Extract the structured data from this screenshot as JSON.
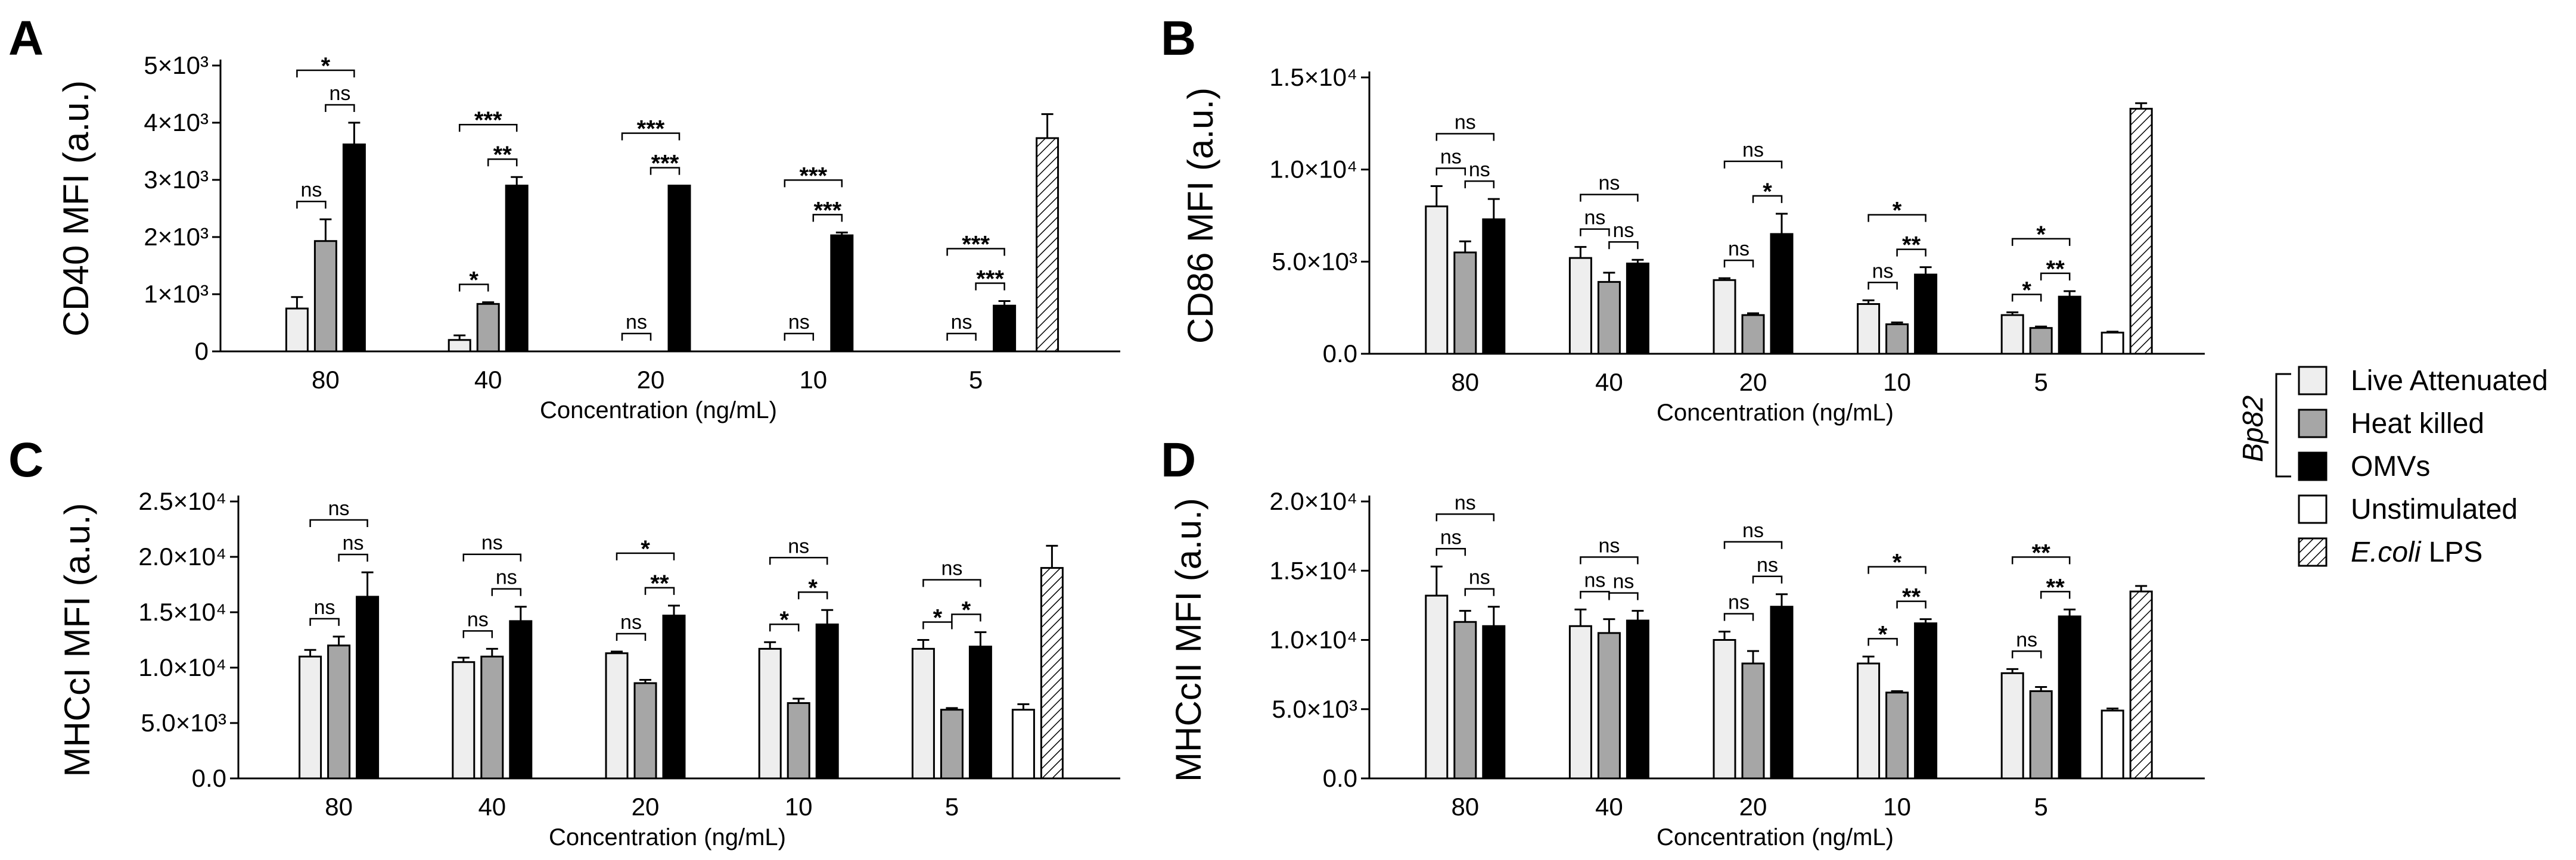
{
  "colors": {
    "live_attenuated": "#eeeeee",
    "heat_killed": "#a6a6a6",
    "omvs": "#000000",
    "unstimulated": "#ffffff",
    "ecoli_lps": "hatched"
  },
  "legend": {
    "group_label": "Bp82",
    "items": [
      {
        "key": "live_attenuated",
        "label": "Live Attenuated"
      },
      {
        "key": "heat_killed",
        "label": "Heat killed"
      },
      {
        "key": "omvs",
        "label": "OMVs"
      },
      {
        "key": "unstimulated",
        "label": "Unstimulated"
      },
      {
        "key": "ecoli_lps",
        "label": "LPS",
        "italic_prefix": "E.coli"
      }
    ]
  },
  "chart_data": [
    {
      "panel": "A",
      "type": "bar",
      "ylabel": "CD40 MFI (a.u.)",
      "xlabel": "Concentration (ng/mL)",
      "ylim": [
        0,
        5000
      ],
      "yticks": [
        {
          "v": 0,
          "label": "0"
        },
        {
          "v": 1000,
          "label": "1×10³"
        },
        {
          "v": 2000,
          "label": "2×10³"
        },
        {
          "v": 3000,
          "label": "3×10³"
        },
        {
          "v": 4000,
          "label": "4×10³"
        },
        {
          "v": 5000,
          "label": "5×10³"
        }
      ],
      "categories": [
        "80",
        "40",
        "20",
        "10",
        "5"
      ],
      "series": [
        {
          "name": "Live Attenuated",
          "values": [
            750,
            200,
            0,
            0,
            0
          ],
          "errors": [
            200,
            80,
            0,
            0,
            0
          ]
        },
        {
          "name": "Heat killed",
          "values": [
            1930,
            830,
            0,
            0,
            0
          ],
          "errors": [
            380,
            30,
            0,
            0,
            0
          ]
        },
        {
          "name": "OMVs",
          "values": [
            3620,
            2900,
            2900,
            2030,
            800
          ],
          "errors": [
            380,
            150,
            0,
            50,
            80
          ]
        }
      ],
      "extra_bars": [
        {
          "name": "E.coli LPS",
          "value": 3730,
          "error": 420
        }
      ],
      "annotations": [
        {
          "cat": 0,
          "from": 0,
          "to": 2,
          "text": "*",
          "level": 1
        },
        {
          "cat": 0,
          "from": 1,
          "to": 2,
          "text": "ns",
          "level": 0
        },
        {
          "cat": 0,
          "from": 0,
          "to": 1,
          "text": "ns",
          "level": 0
        },
        {
          "cat": 1,
          "from": 0,
          "to": 2,
          "text": "***",
          "level": 1
        },
        {
          "cat": 1,
          "from": 1,
          "to": 2,
          "text": "**",
          "level": 0
        },
        {
          "cat": 1,
          "from": 0,
          "to": 1,
          "text": "*",
          "level": 0
        },
        {
          "cat": 2,
          "from": 0,
          "to": 2,
          "text": "***",
          "level": 1
        },
        {
          "cat": 2,
          "from": 1,
          "to": 2,
          "text": "***",
          "level": 0
        },
        {
          "cat": 2,
          "from": 0,
          "to": 1,
          "text": "ns",
          "level": 0
        },
        {
          "cat": 3,
          "from": 0,
          "to": 2,
          "text": "***",
          "level": 1
        },
        {
          "cat": 3,
          "from": 1,
          "to": 2,
          "text": "***",
          "level": 0
        },
        {
          "cat": 3,
          "from": 0,
          "to": 1,
          "text": "ns",
          "level": 0
        },
        {
          "cat": 4,
          "from": 0,
          "to": 2,
          "text": "***",
          "level": 1
        },
        {
          "cat": 4,
          "from": 1,
          "to": 2,
          "text": "***",
          "level": 0
        },
        {
          "cat": 4,
          "from": 0,
          "to": 1,
          "text": "ns",
          "level": 0
        }
      ]
    },
    {
      "panel": "B",
      "type": "bar",
      "ylabel": "CD86 MFI (a.u.)",
      "xlabel": "Concentration (ng/mL)",
      "ylim": [
        0,
        15000
      ],
      "yticks": [
        {
          "v": 0,
          "label": "0.0"
        },
        {
          "v": 5000,
          "label": "5.0×10³"
        },
        {
          "v": 10000,
          "label": "1.0×10⁴"
        },
        {
          "v": 15000,
          "label": "1.5×10⁴"
        }
      ],
      "categories": [
        "80",
        "40",
        "20",
        "10",
        "5"
      ],
      "series": [
        {
          "name": "Live Attenuated",
          "values": [
            8000,
            5200,
            4000,
            2700,
            2100
          ],
          "errors": [
            1100,
            600,
            100,
            200,
            150
          ]
        },
        {
          "name": "Heat killed",
          "values": [
            5500,
            3900,
            2100,
            1600,
            1400
          ],
          "errors": [
            600,
            500,
            100,
            100,
            80
          ]
        },
        {
          "name": "OMVs",
          "values": [
            7300,
            4900,
            6500,
            4300,
            3100
          ],
          "errors": [
            1100,
            200,
            1100,
            400,
            300
          ]
        }
      ],
      "extra_bars": [
        {
          "name": "Unstimulated",
          "value": 1150,
          "error": 50
        },
        {
          "name": "E.coli LPS",
          "value": 13300,
          "error": 300
        }
      ],
      "annotations": [
        {
          "cat": 0,
          "from": 0,
          "to": 2,
          "text": "ns",
          "level": 1
        },
        {
          "cat": 0,
          "from": 0,
          "to": 1,
          "text": "ns",
          "level": 0
        },
        {
          "cat": 0,
          "from": 1,
          "to": 2,
          "text": "ns",
          "level": 0
        },
        {
          "cat": 1,
          "from": 0,
          "to": 2,
          "text": "ns",
          "level": 1
        },
        {
          "cat": 1,
          "from": 0,
          "to": 1,
          "text": "ns",
          "level": 0
        },
        {
          "cat": 1,
          "from": 1,
          "to": 2,
          "text": "ns",
          "level": 0
        },
        {
          "cat": 2,
          "from": 0,
          "to": 2,
          "text": "ns",
          "level": 1
        },
        {
          "cat": 2,
          "from": 1,
          "to": 2,
          "text": "*",
          "level": 0
        },
        {
          "cat": 2,
          "from": 0,
          "to": 1,
          "text": "ns",
          "level": 0
        },
        {
          "cat": 3,
          "from": 0,
          "to": 2,
          "text": "*",
          "level": 1
        },
        {
          "cat": 3,
          "from": 1,
          "to": 2,
          "text": "**",
          "level": 0
        },
        {
          "cat": 3,
          "from": 0,
          "to": 1,
          "text": "ns",
          "level": 0
        },
        {
          "cat": 4,
          "from": 0,
          "to": 2,
          "text": "*",
          "level": 1
        },
        {
          "cat": 4,
          "from": 1,
          "to": 2,
          "text": "**",
          "level": 0
        },
        {
          "cat": 4,
          "from": 0,
          "to": 1,
          "text": "*",
          "level": 0
        }
      ]
    },
    {
      "panel": "C",
      "type": "bar",
      "ylabel": "MHCcI MFI (a.u.)",
      "xlabel": "Concentration (ng/mL)",
      "ylim": [
        0,
        25000
      ],
      "yticks": [
        {
          "v": 0,
          "label": "0.0"
        },
        {
          "v": 5000,
          "label": "5.0×10³"
        },
        {
          "v": 10000,
          "label": "1.0×10⁴"
        },
        {
          "v": 15000,
          "label": "1.5×10⁴"
        },
        {
          "v": 20000,
          "label": "2.0×10⁴"
        },
        {
          "v": 25000,
          "label": "2.5×10⁴"
        }
      ],
      "categories": [
        "80",
        "40",
        "20",
        "10",
        "5"
      ],
      "series": [
        {
          "name": "Live Attenuated",
          "values": [
            11000,
            10500,
            11300,
            11700,
            11700
          ],
          "errors": [
            600,
            400,
            150,
            600,
            800
          ]
        },
        {
          "name": "Heat killed",
          "values": [
            12000,
            11000,
            8600,
            6800,
            6200
          ],
          "errors": [
            800,
            700,
            300,
            400,
            150
          ]
        },
        {
          "name": "OMVs",
          "values": [
            16400,
            14200,
            14700,
            13900,
            11900
          ],
          "errors": [
            2200,
            1300,
            900,
            1300,
            1300
          ]
        }
      ],
      "extra_bars": [
        {
          "name": "Unstimulated",
          "value": 6200,
          "error": 500
        },
        {
          "name": "E.coli LPS",
          "value": 19000,
          "error": 2000
        }
      ],
      "annotations": [
        {
          "cat": 0,
          "from": 0,
          "to": 2,
          "text": "ns",
          "level": 1
        },
        {
          "cat": 0,
          "from": 1,
          "to": 2,
          "text": "ns",
          "level": 0
        },
        {
          "cat": 0,
          "from": 0,
          "to": 1,
          "text": "ns",
          "level": 0
        },
        {
          "cat": 1,
          "from": 0,
          "to": 2,
          "text": "ns",
          "level": 1
        },
        {
          "cat": 1,
          "from": 1,
          "to": 2,
          "text": "ns",
          "level": 0
        },
        {
          "cat": 1,
          "from": 0,
          "to": 1,
          "text": "ns",
          "level": 0
        },
        {
          "cat": 2,
          "from": 0,
          "to": 2,
          "text": "*",
          "level": 1
        },
        {
          "cat": 2,
          "from": 1,
          "to": 2,
          "text": "**",
          "level": 0
        },
        {
          "cat": 2,
          "from": 0,
          "to": 1,
          "text": "ns",
          "level": 0
        },
        {
          "cat": 3,
          "from": 0,
          "to": 2,
          "text": "ns",
          "level": 1
        },
        {
          "cat": 3,
          "from": 1,
          "to": 2,
          "text": "*",
          "level": 0
        },
        {
          "cat": 3,
          "from": 0,
          "to": 1,
          "text": "*",
          "level": 0
        },
        {
          "cat": 4,
          "from": 0,
          "to": 2,
          "text": "ns",
          "level": 1
        },
        {
          "cat": 4,
          "from": 1,
          "to": 2,
          "text": "*",
          "level": 0
        },
        {
          "cat": 4,
          "from": 0,
          "to": 1,
          "text": "*",
          "level": 0
        }
      ]
    },
    {
      "panel": "D",
      "type": "bar",
      "ylabel": "MHCcII MFI (a.u.)",
      "xlabel": "Concentration (ng/mL)",
      "ylim": [
        0,
        20000
      ],
      "yticks": [
        {
          "v": 0,
          "label": "0.0"
        },
        {
          "v": 5000,
          "label": "5.0×10³"
        },
        {
          "v": 10000,
          "label": "1.0×10⁴"
        },
        {
          "v": 15000,
          "label": "1.5×10⁴"
        },
        {
          "v": 20000,
          "label": "2.0×10⁴"
        }
      ],
      "categories": [
        "80",
        "40",
        "20",
        "10",
        "5"
      ],
      "series": [
        {
          "name": "Live Attenuated",
          "values": [
            13200,
            11000,
            10000,
            8300,
            7600
          ],
          "errors": [
            2100,
            1200,
            600,
            500,
            300
          ]
        },
        {
          "name": "Heat killed",
          "values": [
            11300,
            10500,
            8300,
            6200,
            6300
          ],
          "errors": [
            800,
            1000,
            900,
            100,
            300
          ]
        },
        {
          "name": "OMVs",
          "values": [
            11000,
            11400,
            12400,
            11200,
            11700
          ],
          "errors": [
            1400,
            700,
            900,
            300,
            500
          ]
        }
      ],
      "extra_bars": [
        {
          "name": "Unstimulated",
          "value": 4900,
          "error": 150
        },
        {
          "name": "E.coli LPS",
          "value": 13500,
          "error": 400
        }
      ],
      "annotations": [
        {
          "cat": 0,
          "from": 0,
          "to": 2,
          "text": "ns",
          "level": 1
        },
        {
          "cat": 0,
          "from": 0,
          "to": 1,
          "text": "ns",
          "level": 0
        },
        {
          "cat": 0,
          "from": 1,
          "to": 2,
          "text": "ns",
          "level": 0
        },
        {
          "cat": 1,
          "from": 0,
          "to": 2,
          "text": "ns",
          "level": 1
        },
        {
          "cat": 1,
          "from": 0,
          "to": 1,
          "text": "ns",
          "level": 0
        },
        {
          "cat": 1,
          "from": 1,
          "to": 2,
          "text": "ns",
          "level": 0
        },
        {
          "cat": 2,
          "from": 0,
          "to": 2,
          "text": "ns",
          "level": 1
        },
        {
          "cat": 2,
          "from": 1,
          "to": 2,
          "text": "ns",
          "level": 0
        },
        {
          "cat": 2,
          "from": 0,
          "to": 1,
          "text": "ns",
          "level": 0
        },
        {
          "cat": 3,
          "from": 0,
          "to": 2,
          "text": "*",
          "level": 1
        },
        {
          "cat": 3,
          "from": 1,
          "to": 2,
          "text": "**",
          "level": 0
        },
        {
          "cat": 3,
          "from": 0,
          "to": 1,
          "text": "*",
          "level": 0
        },
        {
          "cat": 4,
          "from": 0,
          "to": 2,
          "text": "**",
          "level": 1
        },
        {
          "cat": 4,
          "from": 1,
          "to": 2,
          "text": "**",
          "level": 0
        },
        {
          "cat": 4,
          "from": 0,
          "to": 1,
          "text": "ns",
          "level": 0
        }
      ]
    }
  ]
}
